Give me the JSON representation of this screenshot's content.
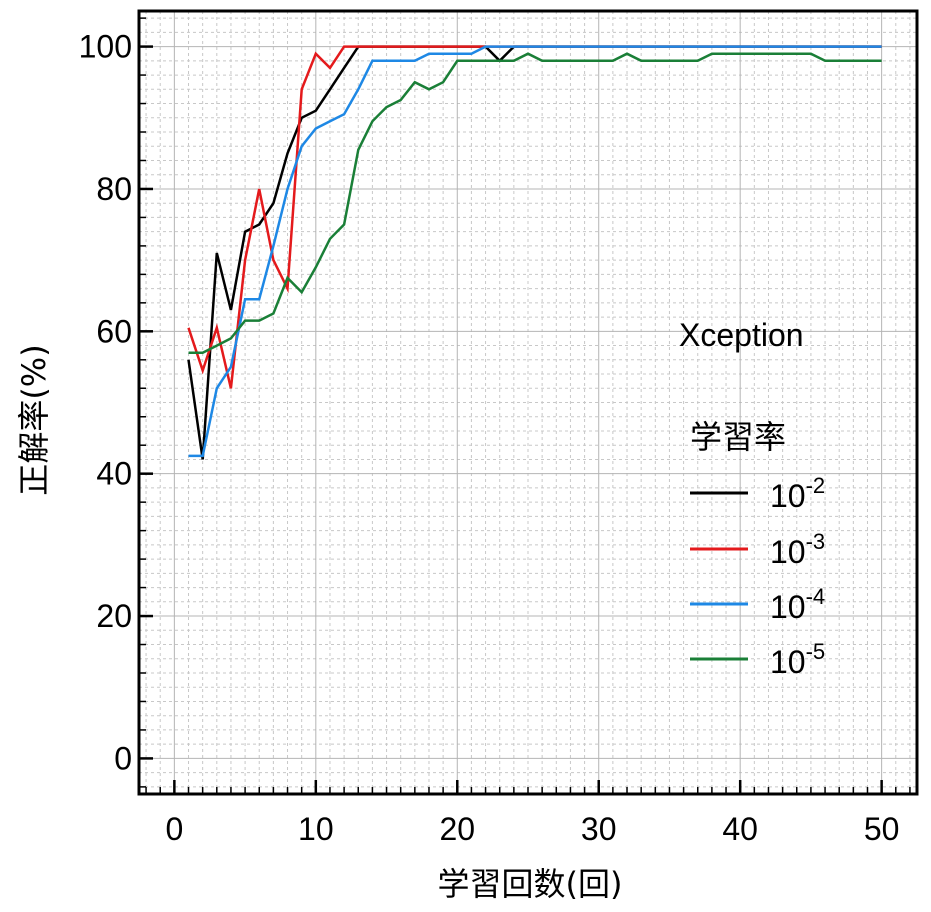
{
  "chart_data": {
    "type": "line",
    "xlabel": "学習回数(回)",
    "ylabel": "正解率(%)",
    "xlim": [
      -2.5,
      52.5
    ],
    "ylim": [
      -5,
      105
    ],
    "xticks": [
      0,
      10,
      20,
      30,
      40,
      50
    ],
    "yticks": [
      0,
      20,
      40,
      60,
      80,
      100
    ],
    "grid": true,
    "legend": {
      "placement": "right",
      "heading": "Xception",
      "title": "学習率",
      "entries": [
        {
          "base": "10",
          "exp": "-2",
          "color": "#000000"
        },
        {
          "base": "10",
          "exp": "-3",
          "color": "#e41a1c"
        },
        {
          "base": "10",
          "exp": "-4",
          "color": "#1e88e5"
        },
        {
          "base": "10",
          "exp": "-5",
          "color": "#1a7f37"
        }
      ]
    },
    "series": [
      {
        "color": "#000000",
        "x": [
          1,
          2,
          3,
          4,
          5,
          6,
          7,
          8,
          9,
          10,
          11,
          12,
          13,
          14,
          15,
          16,
          17,
          18,
          19,
          20,
          21,
          22,
          23,
          24,
          25,
          26,
          27,
          28,
          29,
          30,
          31,
          32,
          33,
          34,
          35,
          36,
          37,
          38,
          39,
          40,
          41,
          42,
          43,
          44,
          45,
          46,
          47,
          48,
          49,
          50
        ],
        "y": [
          56,
          42,
          71,
          63,
          74,
          75,
          78,
          85,
          90,
          91,
          94,
          97,
          100,
          100,
          100,
          100,
          100,
          100,
          100,
          100,
          100,
          100,
          98,
          100,
          100,
          100,
          100,
          100,
          100,
          100,
          100,
          100,
          100,
          100,
          100,
          100,
          100,
          100,
          100,
          100,
          100,
          100,
          100,
          100,
          100,
          100,
          100,
          100,
          100,
          100
        ]
      },
      {
        "color": "#e41a1c",
        "x": [
          1,
          2,
          3,
          4,
          5,
          6,
          7,
          8,
          9,
          10,
          11,
          12,
          13,
          14,
          15,
          16,
          17,
          18,
          19,
          20,
          21,
          22,
          23,
          24,
          25,
          26,
          27,
          28,
          29,
          30,
          31,
          32,
          33,
          34,
          35,
          36,
          37,
          38,
          39,
          40,
          41,
          42,
          43,
          44,
          45,
          46,
          47,
          48,
          49,
          50
        ],
        "y": [
          60.5,
          54.5,
          60.5,
          52,
          70,
          80,
          70,
          66,
          94,
          99,
          97,
          100,
          100,
          100,
          100,
          100,
          100,
          100,
          100,
          100,
          100,
          100,
          100,
          100,
          100,
          100,
          100,
          100,
          100,
          100,
          100,
          100,
          100,
          100,
          100,
          100,
          100,
          100,
          100,
          100,
          100,
          100,
          100,
          100,
          100,
          100,
          100,
          100,
          100,
          100
        ]
      },
      {
        "color": "#1e88e5",
        "x": [
          1,
          2,
          3,
          4,
          5,
          6,
          7,
          8,
          9,
          10,
          11,
          12,
          13,
          14,
          15,
          16,
          17,
          18,
          19,
          20,
          21,
          22,
          23,
          24,
          25,
          26,
          27,
          28,
          29,
          30,
          31,
          32,
          33,
          34,
          35,
          36,
          37,
          38,
          39,
          40,
          41,
          42,
          43,
          44,
          45,
          46,
          47,
          48,
          49,
          50
        ],
        "y": [
          42.5,
          42.5,
          52,
          55,
          64.5,
          64.5,
          72,
          80,
          86,
          88.5,
          89.5,
          90.5,
          94,
          98,
          98,
          98,
          98,
          99,
          99,
          99,
          99,
          100,
          100,
          100,
          100,
          100,
          100,
          100,
          100,
          100,
          100,
          100,
          100,
          100,
          100,
          100,
          100,
          100,
          100,
          100,
          100,
          100,
          100,
          100,
          100,
          100,
          100,
          100,
          100,
          100
        ]
      },
      {
        "color": "#1a7f37",
        "x": [
          1,
          2,
          3,
          4,
          5,
          6,
          7,
          8,
          9,
          10,
          11,
          12,
          13,
          14,
          15,
          16,
          17,
          18,
          19,
          20,
          21,
          22,
          23,
          24,
          25,
          26,
          27,
          28,
          29,
          30,
          31,
          32,
          33,
          34,
          35,
          36,
          37,
          38,
          39,
          40,
          41,
          42,
          43,
          44,
          45,
          46,
          47,
          48,
          49,
          50
        ],
        "y": [
          57,
          57,
          58,
          59,
          61.5,
          61.5,
          62.5,
          67.5,
          65.5,
          69,
          73,
          75,
          85.5,
          89.5,
          91.5,
          92.5,
          95,
          94,
          95,
          98,
          98,
          98,
          98,
          98,
          99,
          98,
          98,
          98,
          98,
          98,
          98,
          99,
          98,
          98,
          98,
          98,
          98,
          99,
          99,
          99,
          99,
          99,
          99,
          99,
          99,
          98,
          98,
          98,
          98,
          98
        ]
      }
    ]
  }
}
